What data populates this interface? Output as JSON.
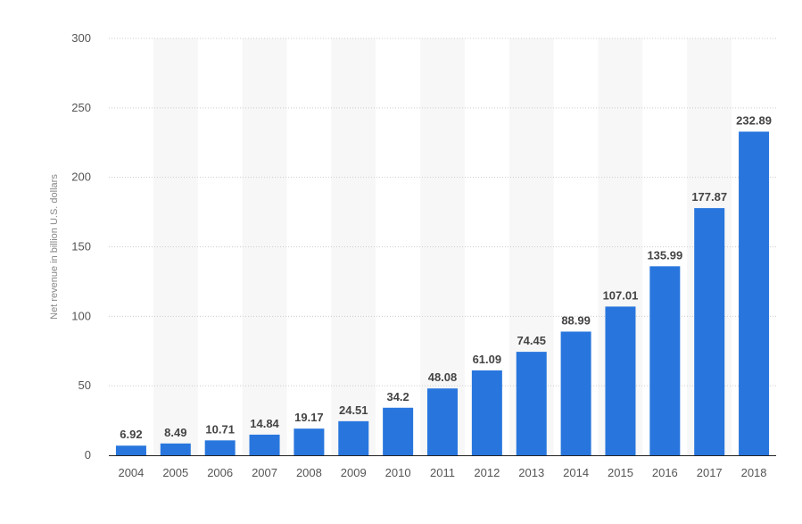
{
  "chart_data": {
    "type": "bar",
    "title": "",
    "xlabel": "",
    "ylabel": "Net revenue in billion U.S. dollars",
    "ylim": [
      0,
      300
    ],
    "yticks": [
      0,
      50,
      100,
      150,
      200,
      250,
      300
    ],
    "grid": true,
    "legend": "none",
    "categories": [
      "2004",
      "2005",
      "2006",
      "2007",
      "2008",
      "2009",
      "2010",
      "2011",
      "2012",
      "2013",
      "2014",
      "2015",
      "2016",
      "2017",
      "2018"
    ],
    "values": [
      6.92,
      8.49,
      10.71,
      14.84,
      19.17,
      24.51,
      34.2,
      48.08,
      61.09,
      74.45,
      88.99,
      107.01,
      135.99,
      177.87,
      232.89
    ],
    "value_labels": [
      "6.92",
      "8.49",
      "10.71",
      "14.84",
      "19.17",
      "24.51",
      "34.2",
      "48.08",
      "61.09",
      "74.45",
      "88.99",
      "107.01",
      "135.99",
      "177.87",
      "232.89"
    ],
    "ytick_labels": [
      "0",
      "50",
      "100",
      "150",
      "200",
      "250",
      "300"
    ],
    "colors": {
      "bar": "#2876DD",
      "band": "#F7F7F7",
      "grid": "#CCCCCC",
      "axis": "#222222"
    }
  }
}
